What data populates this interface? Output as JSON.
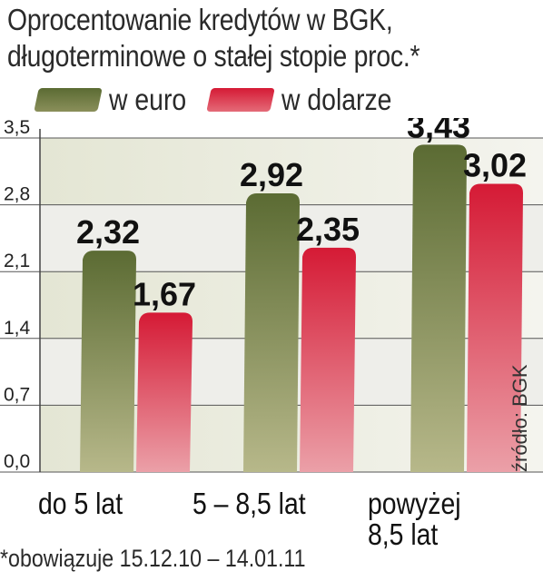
{
  "title": {
    "line1": "Oprocentowanie kredytów w BGK,",
    "line2": "długoterminowe o stałej stopie proc.*"
  },
  "legend": {
    "euro_label": "w euro",
    "dollar_label": "w dolarze"
  },
  "colors": {
    "euro": "#5b6b33",
    "euro_light": "#b7b88a",
    "dollar": "#d51a35",
    "dollar_light": "#eba0a8"
  },
  "source": "źródło: BGK",
  "footnote": "*obowiązuje 15.12.10 – 14.01.11",
  "chart_data": {
    "type": "bar",
    "categories": [
      "do 5 lat",
      "5 – 8,5 lat",
      "powyżej\n8,5 lat"
    ],
    "series": [
      {
        "name": "w euro",
        "values": [
          2.32,
          2.92,
          3.43
        ],
        "labels": [
          "2,32",
          "2,92",
          "3,43"
        ]
      },
      {
        "name": "w dolarze",
        "values": [
          1.67,
          2.35,
          3.02
        ],
        "labels": [
          "1,67",
          "2,35",
          "3,02"
        ]
      }
    ],
    "yticks": [
      "0,0",
      "0,7",
      "1,4",
      "2,1",
      "2,8",
      "3,5"
    ],
    "ytick_values": [
      0,
      0.7,
      1.4,
      2.1,
      2.8,
      3.5
    ],
    "ylim": [
      0,
      3.5
    ],
    "title": "Oprocentowanie kredytów w BGK, długoterminowe o stałej stopie proc.*",
    "xlabel": "",
    "ylabel": "",
    "legend_position": "top",
    "grid": true
  }
}
